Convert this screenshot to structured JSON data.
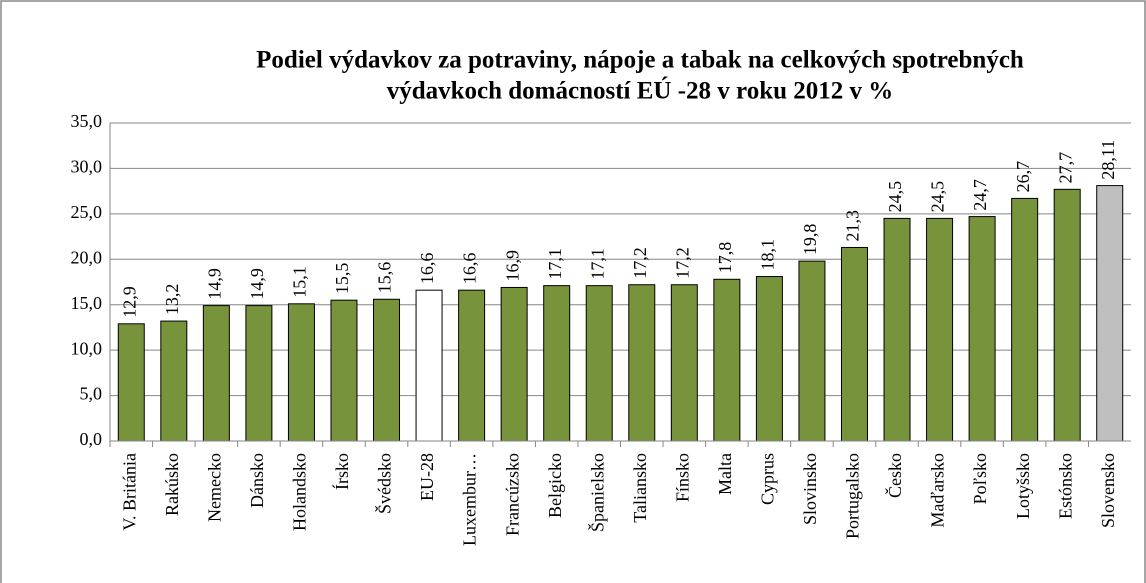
{
  "chart_data": {
    "type": "bar",
    "title": [
      "Podiel výdavkov za potraviny, nápoje a tabak na celkových spotrebných",
      "výdavkoch domácností EÚ -28 v roku 2012 v %"
    ],
    "categories": [
      "V. Británia",
      "Rakúsko",
      "Nemecko",
      "Dánsko",
      "Holandsko",
      "Írsko",
      "Švédsko",
      "EU-28",
      "Luxembur…",
      "Francúzsko",
      "Belgicko",
      "Španielsko",
      "Taliansko",
      "Fínsko",
      "Malta",
      "Cyprus",
      "Slovinsko",
      "Portugalsko",
      "Česko",
      "Maďarsko",
      "Poľsko",
      "Lotyšsko",
      "Estónsko",
      "Slovensko"
    ],
    "values": [
      12.9,
      13.2,
      14.9,
      14.9,
      15.1,
      15.5,
      15.6,
      16.6,
      16.6,
      16.9,
      17.1,
      17.1,
      17.2,
      17.2,
      17.8,
      18.1,
      19.8,
      21.3,
      24.5,
      24.5,
      24.7,
      26.7,
      27.7,
      28.11
    ],
    "value_labels": [
      "12,9",
      "13,2",
      "14,9",
      "14,9",
      "15,1",
      "15,5",
      "15,6",
      "16,6",
      "16,6",
      "16,9",
      "17,1",
      "17,1",
      "17,2",
      "17,2",
      "17,8",
      "18,1",
      "19,8",
      "21,3",
      "24,5",
      "24,5",
      "24,7",
      "26,7",
      "27,7",
      "28,11"
    ],
    "colors": [
      "#77933c",
      "#77933c",
      "#77933c",
      "#77933c",
      "#77933c",
      "#77933c",
      "#77933c",
      "#ffffff",
      "#77933c",
      "#77933c",
      "#77933c",
      "#77933c",
      "#77933c",
      "#77933c",
      "#77933c",
      "#77933c",
      "#77933c",
      "#77933c",
      "#77933c",
      "#77933c",
      "#77933c",
      "#77933c",
      "#77933c",
      "#bfbfbf"
    ],
    "ylim": [
      0,
      35
    ],
    "yticks": [
      {
        "value": 0,
        "label": "0,0"
      },
      {
        "value": 5,
        "label": "5,0"
      },
      {
        "value": 10,
        "label": "10,0"
      },
      {
        "value": 15,
        "label": "15,0"
      },
      {
        "value": 20,
        "label": "20,0"
      },
      {
        "value": 25,
        "label": "25,0"
      },
      {
        "value": 30,
        "label": "30,0"
      },
      {
        "value": 35,
        "label": "35,0"
      }
    ],
    "grid": true
  }
}
